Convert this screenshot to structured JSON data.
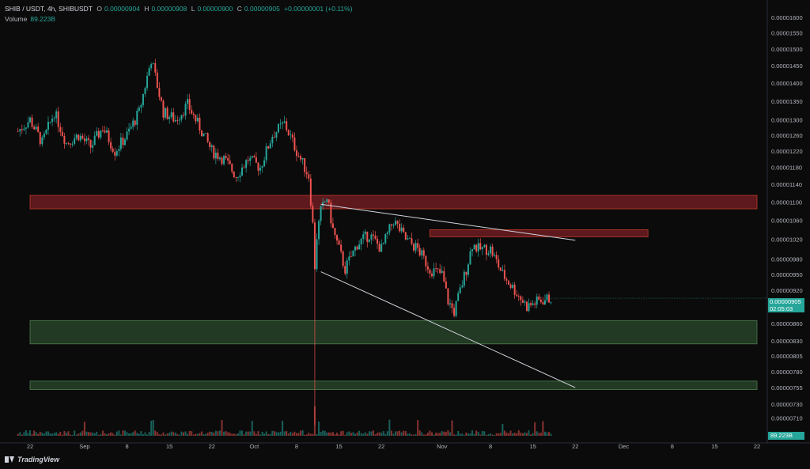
{
  "header": {
    "symbol": "SHIB / USDT, 4h, SHIBUSDT",
    "open_label": "O",
    "open": "0.00000904",
    "high_label": "H",
    "high": "0.00000908",
    "low_label": "L",
    "low": "0.00000900",
    "close_label": "C",
    "close": "0.00000905",
    "change": "+0.00000001 (+0.11%)",
    "volume_label": "Volume",
    "volume": "89.223B"
  },
  "current_price": {
    "value": "0.00000905",
    "countdown": "02:05:03"
  },
  "volume_badge": "89.223B",
  "brand": "TradingView",
  "colors": {
    "background": "#0b0b0b",
    "up": "#26a69a",
    "down": "#ef5350",
    "resistance_zone": "#7a1f24",
    "support_zone": "#2b4a2c"
  },
  "chart_data": {
    "type": "candlestick",
    "symbol": "SHIB / USDT",
    "interval": "4h",
    "ylim": [
      6.88e-06,
      1.61e-05
    ],
    "y_scale": "log",
    "y_ticks": [
      "0.00001600",
      "0.00001550",
      "0.00001500",
      "0.00001450",
      "0.00001400",
      "0.00001350",
      "0.00001300",
      "0.00001260",
      "0.00001220",
      "0.00001180",
      "0.00001140",
      "0.00001100",
      "0.00001060",
      "0.00001020",
      "0.00000980",
      "0.00000950",
      "0.00000920",
      "0.00000890",
      "0.00000860",
      "0.00000830",
      "0.00000805",
      "0.00000780",
      "0.00000755",
      "0.00000730",
      "0.00000710"
    ],
    "x_ticks": [
      "22",
      "Sep",
      "8",
      "15",
      "22",
      "Oct",
      "8",
      "15",
      "22",
      "Nov",
      "8",
      "15",
      "22",
      "Dec",
      "8",
      "15",
      "22"
    ],
    "x_range_days": [
      -6,
      114
    ],
    "x_tick_days": [
      -6,
      3,
      10,
      17,
      24,
      31,
      38,
      45,
      52,
      62,
      70,
      77,
      84,
      92,
      100,
      107,
      114
    ],
    "price_path_days": [
      -8,
      -6,
      -4,
      -2,
      0,
      2,
      4,
      6,
      8,
      10,
      12,
      14,
      16,
      18,
      20,
      22,
      24,
      26,
      28,
      30,
      32,
      34,
      36,
      38,
      40,
      41,
      42,
      43,
      44,
      46,
      48,
      50,
      52,
      54,
      56,
      58,
      60,
      62,
      63,
      64,
      66,
      67,
      68,
      70,
      72,
      74,
      76,
      78,
      80
    ],
    "price_path": [
      1.27e-05,
      1.3e-05,
      1.24e-05,
      1.32e-05,
      1.24e-05,
      1.26e-05,
      1.23e-05,
      1.28e-05,
      1.22e-05,
      1.26e-05,
      1.32e-05,
      1.47e-05,
      1.32e-05,
      1.3e-05,
      1.34e-05,
      1.28e-05,
      1.22e-05,
      1.2e-05,
      1.16e-05,
      1.2e-05,
      1.18e-05,
      1.26e-05,
      1.29e-05,
      1.22e-05,
      1.16e-05,
      1e-05,
      1.08e-05,
      1.11e-05,
      1.04e-05,
      9.6e-06,
      1.01e-05,
      1.03e-05,
      1e-05,
      1.06e-05,
      1.02e-05,
      1e-05,
      9.6e-06,
      9.5e-06,
      9e-06,
      8.8e-06,
      9.6e-06,
      1.01e-05,
      1e-05,
      1e-05,
      9.5e-06,
      9.2e-06,
      8.9e-06,
      9e-06,
      9.05e-06
    ],
    "zones": [
      {
        "kind": "resistance",
        "low": 1.085e-05,
        "high": 1.115e-05,
        "start_day": -6,
        "end_day": 114
      },
      {
        "kind": "resistance",
        "low": 1.025e-05,
        "high": 1.04e-05,
        "start_day": 60,
        "end_day": 96
      },
      {
        "kind": "support",
        "low": 8.25e-06,
        "high": 8.65e-06,
        "start_day": -6,
        "end_day": 114
      },
      {
        "kind": "support",
        "low": 7.52e-06,
        "high": 7.65e-06,
        "start_day": -6,
        "end_day": 114
      }
    ],
    "trendlines": [
      {
        "from": [
          42,
          1.095e-05
        ],
        "to": [
          84,
          1.018e-05
        ]
      },
      {
        "from": [
          42,
          9.55e-06
        ],
        "to": [
          84,
          7.55e-06
        ]
      }
    ]
  }
}
